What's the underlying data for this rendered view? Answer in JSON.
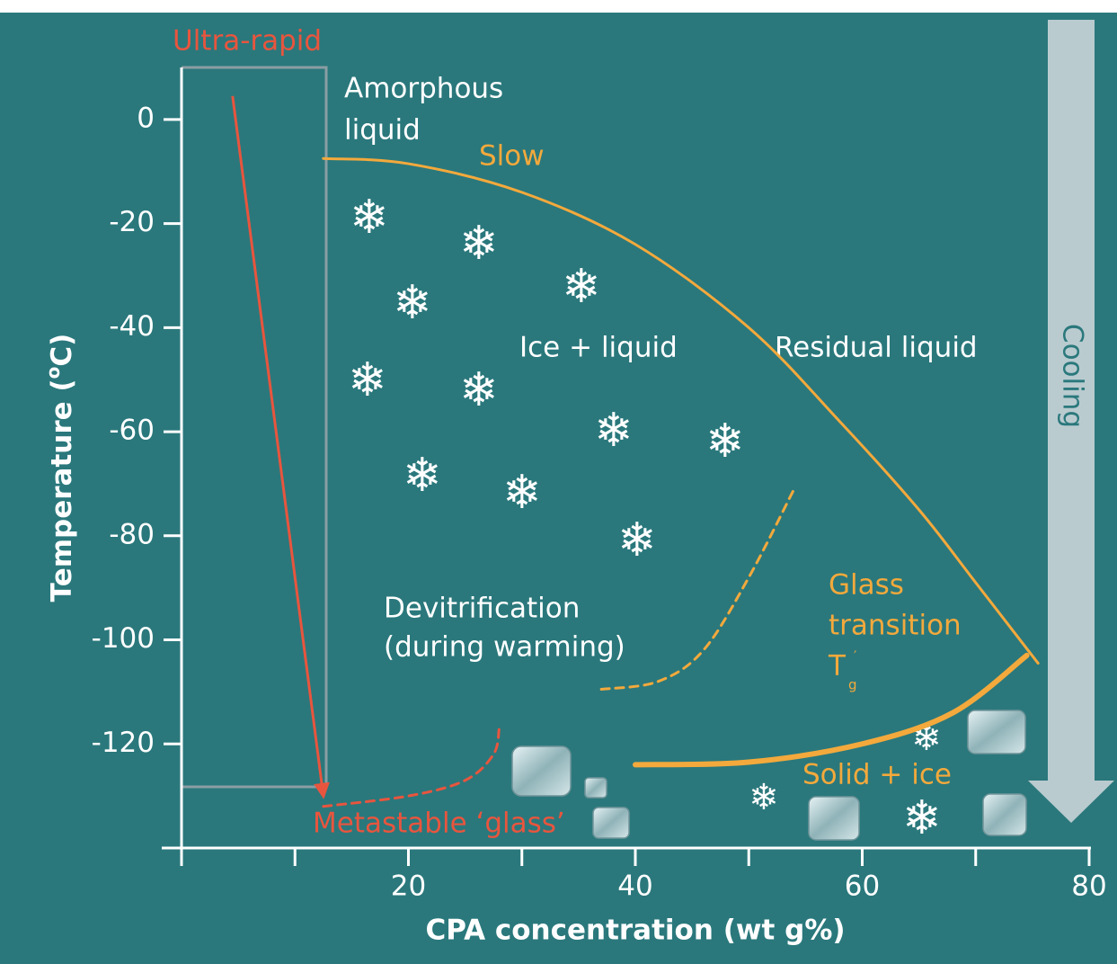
{
  "chart_data": {
    "type": "phase-diagram",
    "xlabel": "CPA concentration (wt g%)",
    "ylabel": {
      "text": "Temperature (",
      "sup": "o",
      "end": "C)"
    },
    "xlim": [
      0,
      80
    ],
    "ylim": [
      -140,
      10
    ],
    "xticks": [
      20,
      40,
      60,
      80
    ],
    "xminor_ticks": [
      0,
      10,
      30,
      50,
      70
    ],
    "yticks": [
      -120,
      -100,
      -80,
      -60,
      -40,
      -20,
      0
    ],
    "labels": {
      "ultra_rapid": "Ultra-rapid",
      "amorphous": [
        "Amorphous",
        "liquid"
      ],
      "slow": "Slow",
      "ice_liquid": "Ice + liquid",
      "residual": "Residual liquid",
      "devitrification": [
        "Devitrification",
        "(during warming)"
      ],
      "glass_transition": [
        "Glass",
        "transition",
        "T",
        "g",
        "′"
      ],
      "solid_ice": "Solid + ice",
      "metastable": "Metastable ‘glass’",
      "cooling": "Cooling"
    },
    "curves": [
      {
        "x": [
          12.5,
          20,
          30,
          40,
          50,
          58,
          65,
          70,
          75.5
        ],
        "y": [
          -7.5,
          -8.5,
          -14,
          -24,
          -40,
          -58,
          -75,
          -89,
          -104.5
        ],
        "color": "#f3a93c",
        "width": 3,
        "dashed": false
      },
      {
        "x": [
          40,
          50,
          60,
          68,
          74.5
        ],
        "y": [
          -124,
          -123.5,
          -120,
          -114,
          -103
        ],
        "color": "#f3a93c",
        "width": 6,
        "dashed": false
      },
      {
        "x": [
          37,
          42,
          46,
          50,
          54
        ],
        "y": [
          -109.5,
          -108,
          -102,
          -88,
          -71
        ],
        "color": "#f3a93c",
        "width": 3,
        "dashed": true
      },
      {
        "x": [
          12.5,
          20,
          25,
          27.5,
          28
        ],
        "y": [
          -132,
          -130,
          -127,
          -122,
          -117
        ],
        "color": "#e8553e",
        "width": 3,
        "dashed": true
      }
    ],
    "arrows": [
      {
        "x": [
          4.5,
          12.5
        ],
        "y": [
          4.5,
          -130
        ],
        "color": "#e8553e"
      }
    ]
  }
}
